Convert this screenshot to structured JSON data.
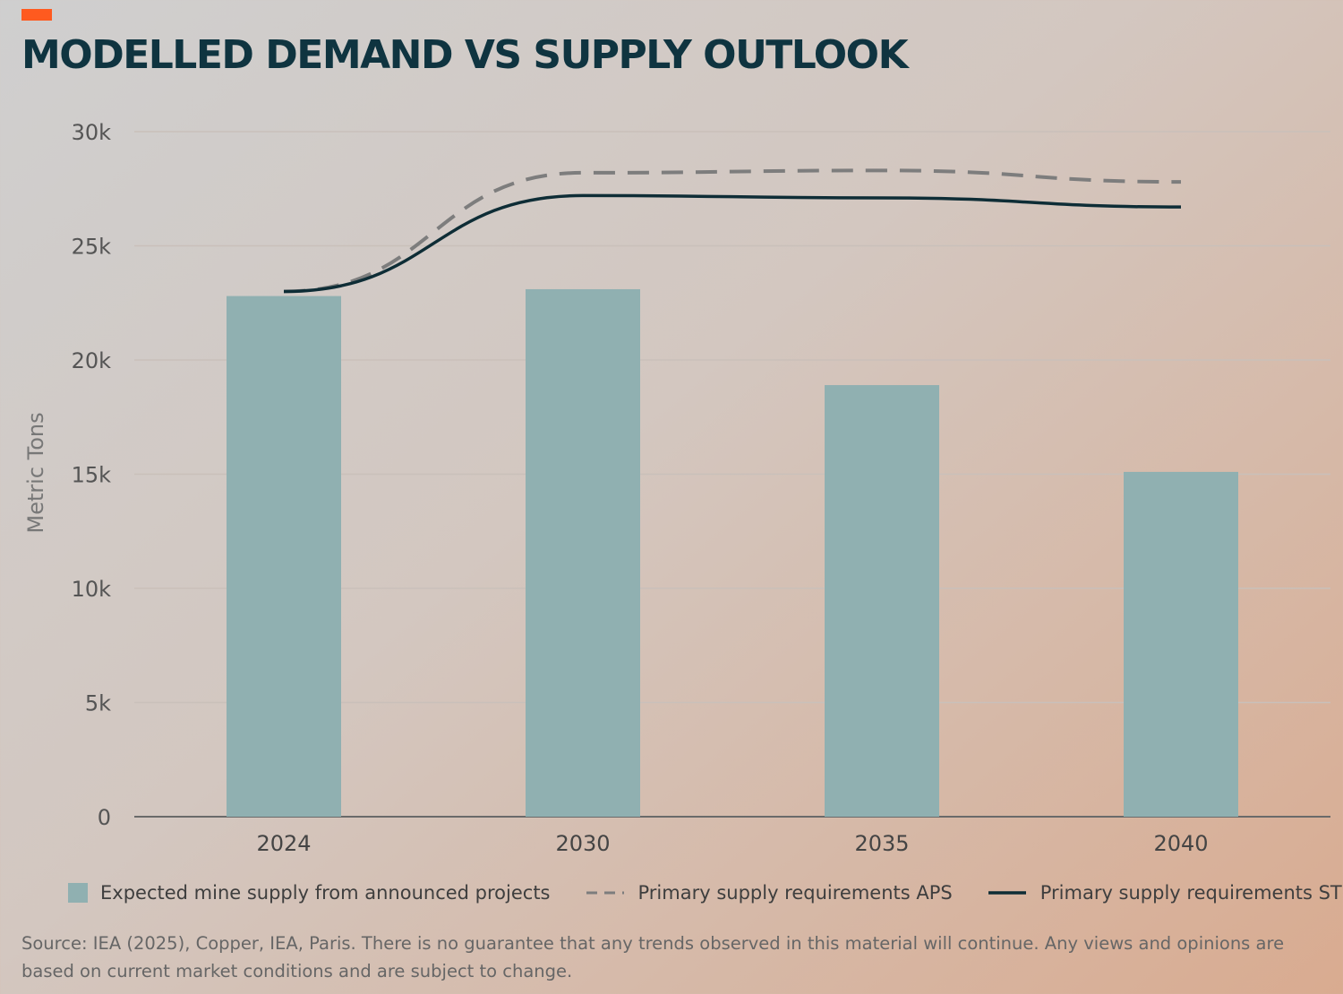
{
  "accent_color": "#ff5a1f",
  "title": "MODELLED DEMAND VS SUPPLY OUTLOOK",
  "chart_data": {
    "type": "bar",
    "categories": [
      "2024",
      "2030",
      "2035",
      "2040"
    ],
    "ylabel": "Metric Tons",
    "xlabel": "",
    "ylim": [
      0,
      30000
    ],
    "yticks": [
      0,
      5000,
      10000,
      15000,
      20000,
      25000,
      30000
    ],
    "ytick_labels": [
      "0",
      "5k",
      "10k",
      "15k",
      "20k",
      "25k",
      "30k"
    ],
    "grid": true,
    "series": [
      {
        "name": "Expected mine supply from announced projects",
        "kind": "bar",
        "color": "#90b0b1",
        "values": [
          22800,
          23100,
          18900,
          15100
        ]
      },
      {
        "name": "Primary supply requirements APS",
        "kind": "line",
        "style": "dashed",
        "color": "#7d7d7d",
        "values": [
          23000,
          28200,
          28300,
          27800
        ]
      },
      {
        "name": "Primary supply requirements STEPS",
        "kind": "line",
        "style": "solid",
        "color": "#0e2d36",
        "values": [
          23000,
          27200,
          27100,
          26700
        ]
      }
    ]
  },
  "legend": [
    {
      "label": "Expected mine supply from announced projects",
      "symbol": "box"
    },
    {
      "label": "Primary supply requirements APS",
      "symbol": "dashed-line"
    },
    {
      "label": "Primary supply requirements STEPS",
      "symbol": "solid-line"
    }
  ],
  "source": "Source: IEA (2025), Copper, IEA, Paris. There is no guarantee that any trends observed in this material will continue. Any views and opinions are based on current market conditions and are subject to change."
}
